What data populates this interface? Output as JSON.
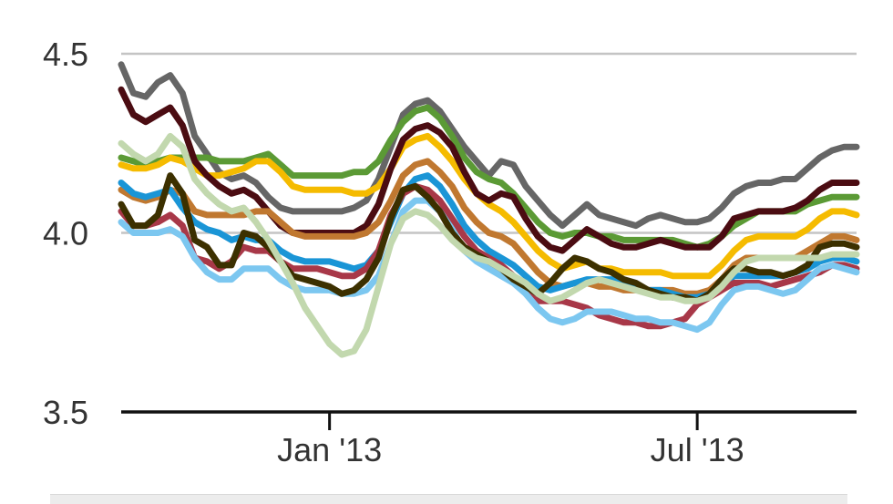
{
  "chart_data": {
    "type": "line",
    "ylim": [
      3.5,
      4.5
    ],
    "xlim": [
      0,
      60
    ],
    "grid": true,
    "y_ticks": [
      {
        "value": 4.5,
        "label": "4.5"
      },
      {
        "value": 4.0,
        "label": "4.0"
      },
      {
        "value": 3.5,
        "label": "3.5"
      }
    ],
    "x_ticks": [
      {
        "x": 17,
        "label": "Jan '13"
      },
      {
        "x": 47,
        "label": "Jul '13"
      }
    ],
    "x": [
      0,
      1,
      2,
      3,
      4,
      5,
      6,
      7,
      8,
      9,
      10,
      11,
      12,
      13,
      14,
      15,
      16,
      17,
      18,
      19,
      20,
      21,
      22,
      23,
      24,
      25,
      26,
      27,
      28,
      29,
      30,
      31,
      32,
      33,
      34,
      35,
      36,
      37,
      38,
      39,
      40,
      41,
      42,
      43,
      44,
      45,
      46,
      47,
      48,
      49,
      50,
      51,
      52,
      53,
      54,
      55,
      56,
      57,
      58,
      59,
      60
    ],
    "series": [
      {
        "color": "#666666",
        "values": [
          4.47,
          4.39,
          4.38,
          4.42,
          4.44,
          4.39,
          4.27,
          4.22,
          4.17,
          4.15,
          4.16,
          4.14,
          4.1,
          4.07,
          4.06,
          4.06,
          4.06,
          4.06,
          4.06,
          4.07,
          4.09,
          4.15,
          4.24,
          4.33,
          4.36,
          4.37,
          4.34,
          4.29,
          4.24,
          4.2,
          4.16,
          4.2,
          4.19,
          4.13,
          4.09,
          4.05,
          4.02,
          4.05,
          4.08,
          4.05,
          4.04,
          4.03,
          4.02,
          4.04,
          4.05,
          4.04,
          4.03,
          4.03,
          4.04,
          4.07,
          4.11,
          4.13,
          4.14,
          4.14,
          4.15,
          4.15,
          4.18,
          4.21,
          4.23,
          4.24,
          4.24
        ]
      },
      {
        "color": "#5b9a35",
        "values": [
          4.21,
          4.2,
          4.19,
          4.2,
          4.21,
          4.21,
          4.21,
          4.21,
          4.2,
          4.2,
          4.2,
          4.21,
          4.22,
          4.19,
          4.16,
          4.16,
          4.16,
          4.16,
          4.16,
          4.17,
          4.17,
          4.2,
          4.26,
          4.31,
          4.34,
          4.35,
          4.32,
          4.27,
          4.21,
          4.17,
          4.15,
          4.14,
          4.11,
          4.07,
          4.03,
          4.0,
          3.99,
          4.0,
          4.0,
          3.99,
          3.99,
          3.98,
          3.98,
          3.98,
          3.98,
          3.98,
          3.97,
          3.96,
          3.97,
          3.99,
          4.02,
          4.04,
          4.06,
          4.06,
          4.06,
          4.06,
          4.08,
          4.09,
          4.1,
          4.1,
          4.1
        ]
      },
      {
        "color": "#f5bb00",
        "values": [
          4.19,
          4.18,
          4.18,
          4.19,
          4.21,
          4.2,
          4.18,
          4.16,
          4.16,
          4.17,
          4.18,
          4.2,
          4.2,
          4.17,
          4.13,
          4.12,
          4.12,
          4.12,
          4.12,
          4.11,
          4.11,
          4.13,
          4.18,
          4.24,
          4.26,
          4.27,
          4.24,
          4.2,
          4.15,
          4.11,
          4.08,
          4.06,
          4.03,
          3.99,
          3.95,
          3.92,
          3.9,
          3.91,
          3.92,
          3.9,
          3.9,
          3.89,
          3.89,
          3.89,
          3.89,
          3.88,
          3.88,
          3.88,
          3.88,
          3.91,
          3.95,
          3.98,
          3.99,
          3.99,
          3.99,
          3.99,
          4.01,
          4.04,
          4.06,
          4.06,
          4.05
        ]
      },
      {
        "color": "#4b0c12",
        "values": [
          4.4,
          4.33,
          4.31,
          4.33,
          4.35,
          4.3,
          4.2,
          4.16,
          4.13,
          4.11,
          4.12,
          4.1,
          4.06,
          4.02,
          4.0,
          4.0,
          4.0,
          4.0,
          4.0,
          4.0,
          4.02,
          4.08,
          4.18,
          4.26,
          4.29,
          4.3,
          4.28,
          4.24,
          4.17,
          4.11,
          4.09,
          4.11,
          4.1,
          4.04,
          3.99,
          3.96,
          3.95,
          3.98,
          4.01,
          3.99,
          3.97,
          3.96,
          3.96,
          3.97,
          3.98,
          3.97,
          3.96,
          3.96,
          3.96,
          3.99,
          4.04,
          4.05,
          4.06,
          4.06,
          4.06,
          4.07,
          4.09,
          4.12,
          4.14,
          4.14,
          4.14
        ]
      },
      {
        "color": "#c07830",
        "values": [
          4.12,
          4.1,
          4.09,
          4.1,
          4.12,
          4.11,
          4.06,
          4.05,
          4.05,
          4.05,
          4.05,
          4.06,
          4.06,
          4.03,
          4.0,
          3.99,
          3.99,
          3.99,
          3.99,
          3.99,
          4.0,
          4.03,
          4.09,
          4.16,
          4.19,
          4.2,
          4.17,
          4.13,
          4.07,
          4.03,
          4.0,
          3.99,
          3.97,
          3.93,
          3.89,
          3.86,
          3.85,
          3.86,
          3.86,
          3.85,
          3.85,
          3.84,
          3.84,
          3.84,
          3.84,
          3.84,
          3.83,
          3.83,
          3.84,
          3.87,
          3.91,
          3.93,
          3.93,
          3.93,
          3.93,
          3.93,
          3.95,
          3.97,
          3.99,
          3.99,
          3.98
        ]
      },
      {
        "color": "#1a95d6",
        "values": [
          4.14,
          4.11,
          4.1,
          4.11,
          4.12,
          4.07,
          4.03,
          4.01,
          4.0,
          3.98,
          3.99,
          3.98,
          3.98,
          3.95,
          3.93,
          3.92,
          3.92,
          3.92,
          3.91,
          3.9,
          3.91,
          3.95,
          4.03,
          4.11,
          4.15,
          4.16,
          4.13,
          4.08,
          4.02,
          3.98,
          3.95,
          3.93,
          3.91,
          3.88,
          3.85,
          3.84,
          3.85,
          3.86,
          3.87,
          3.87,
          3.87,
          3.86,
          3.85,
          3.84,
          3.84,
          3.83,
          3.82,
          3.82,
          3.83,
          3.85,
          3.88,
          3.88,
          3.88,
          3.88,
          3.88,
          3.89,
          3.9,
          3.92,
          3.93,
          3.93,
          3.92
        ]
      },
      {
        "color": "#a83848",
        "values": [
          4.06,
          4.02,
          4.02,
          4.03,
          4.05,
          4.02,
          3.93,
          3.92,
          3.9,
          3.92,
          3.96,
          3.95,
          3.95,
          3.92,
          3.9,
          3.9,
          3.9,
          3.89,
          3.88,
          3.88,
          3.9,
          3.95,
          4.05,
          4.11,
          4.13,
          4.12,
          4.09,
          4.04,
          3.99,
          3.95,
          3.93,
          3.91,
          3.88,
          3.84,
          3.81,
          3.81,
          3.81,
          3.8,
          3.79,
          3.77,
          3.76,
          3.75,
          3.75,
          3.74,
          3.74,
          3.75,
          3.76,
          3.8,
          3.82,
          3.84,
          3.86,
          3.86,
          3.86,
          3.85,
          3.86,
          3.87,
          3.88,
          3.89,
          3.91,
          3.91,
          3.9
        ]
      },
      {
        "color": "#7cc7f0",
        "values": [
          4.03,
          4.0,
          4.0,
          4.0,
          4.01,
          3.99,
          3.93,
          3.89,
          3.87,
          3.87,
          3.9,
          3.9,
          3.9,
          3.87,
          3.85,
          3.84,
          3.84,
          3.84,
          3.83,
          3.83,
          3.84,
          3.88,
          3.97,
          4.06,
          4.09,
          4.09,
          4.06,
          4.01,
          3.95,
          3.92,
          3.9,
          3.88,
          3.86,
          3.83,
          3.79,
          3.76,
          3.75,
          3.76,
          3.78,
          3.78,
          3.78,
          3.77,
          3.76,
          3.76,
          3.75,
          3.75,
          3.74,
          3.73,
          3.75,
          3.8,
          3.84,
          3.85,
          3.85,
          3.84,
          3.83,
          3.84,
          3.87,
          3.9,
          3.91,
          3.9,
          3.89
        ]
      },
      {
        "color": "#3c3000",
        "values": [
          4.08,
          4.02,
          4.02,
          4.05,
          4.16,
          4.11,
          3.98,
          3.96,
          3.91,
          3.91,
          4.0,
          3.99,
          3.96,
          3.92,
          3.88,
          3.87,
          3.86,
          3.85,
          3.83,
          3.84,
          3.87,
          3.93,
          4.04,
          4.12,
          4.13,
          4.1,
          4.06,
          4.0,
          3.96,
          3.94,
          3.92,
          3.9,
          3.87,
          3.85,
          3.83,
          3.86,
          3.9,
          3.93,
          3.92,
          3.9,
          3.89,
          3.87,
          3.86,
          3.84,
          3.83,
          3.82,
          3.82,
          3.81,
          3.83,
          3.87,
          3.9,
          3.9,
          3.89,
          3.89,
          3.88,
          3.89,
          3.91,
          3.96,
          3.97,
          3.97,
          3.96
        ]
      },
      {
        "color": "#c2d8ae",
        "values": [
          4.25,
          4.22,
          4.2,
          4.22,
          4.27,
          4.24,
          4.15,
          4.11,
          4.08,
          4.06,
          4.07,
          4.03,
          3.98,
          3.92,
          3.86,
          3.79,
          3.74,
          3.69,
          3.66,
          3.67,
          3.73,
          3.85,
          3.97,
          4.04,
          4.06,
          4.05,
          4.02,
          3.98,
          3.95,
          3.93,
          3.92,
          3.9,
          3.88,
          3.86,
          3.83,
          3.81,
          3.82,
          3.84,
          3.86,
          3.87,
          3.86,
          3.85,
          3.84,
          3.83,
          3.82,
          3.82,
          3.81,
          3.81,
          3.82,
          3.85,
          3.89,
          3.92,
          3.93,
          3.93,
          3.93,
          3.93,
          3.93,
          3.93,
          3.94,
          3.94,
          3.94
        ]
      }
    ]
  }
}
